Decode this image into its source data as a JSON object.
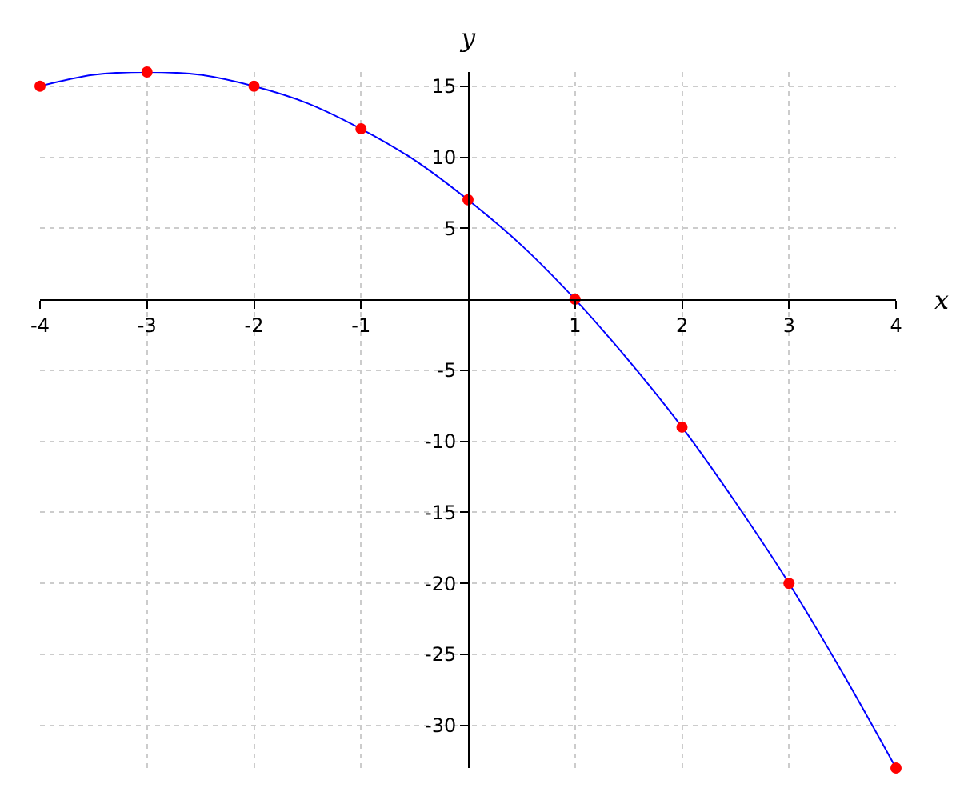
{
  "chart_data": {
    "type": "line",
    "xlabel": "x",
    "ylabel": "y",
    "xlim": [
      -4,
      4
    ],
    "ylim": [
      -33,
      16
    ],
    "xticks": [
      -4,
      -3,
      -2,
      -1,
      1,
      2,
      3,
      4
    ],
    "yticks": [
      -30,
      -25,
      -20,
      -15,
      -10,
      -5,
      5,
      10,
      15
    ],
    "grid": true,
    "series": [
      {
        "color": "#0000ff",
        "marker": "none",
        "x": [
          -4,
          -3.5,
          -3,
          -2.5,
          -2,
          -1.5,
          -1,
          -0.5,
          0,
          0.5,
          1,
          1.5,
          2,
          2.5,
          3,
          3.5,
          4
        ],
        "values": [
          15,
          15.8,
          16,
          15.8,
          15,
          13.8,
          12,
          9.8,
          7,
          3.8,
          0,
          -4.3,
          -9,
          -14.3,
          -20,
          -26.3,
          -33
        ]
      },
      {
        "type": "scatter",
        "color": "#ff0000",
        "marker": "circle",
        "x": [
          -4,
          -3,
          -2,
          -1,
          0,
          1,
          2,
          3,
          4
        ],
        "values": [
          15,
          16,
          15,
          12,
          7,
          0,
          -9,
          -20,
          -33
        ]
      }
    ]
  }
}
